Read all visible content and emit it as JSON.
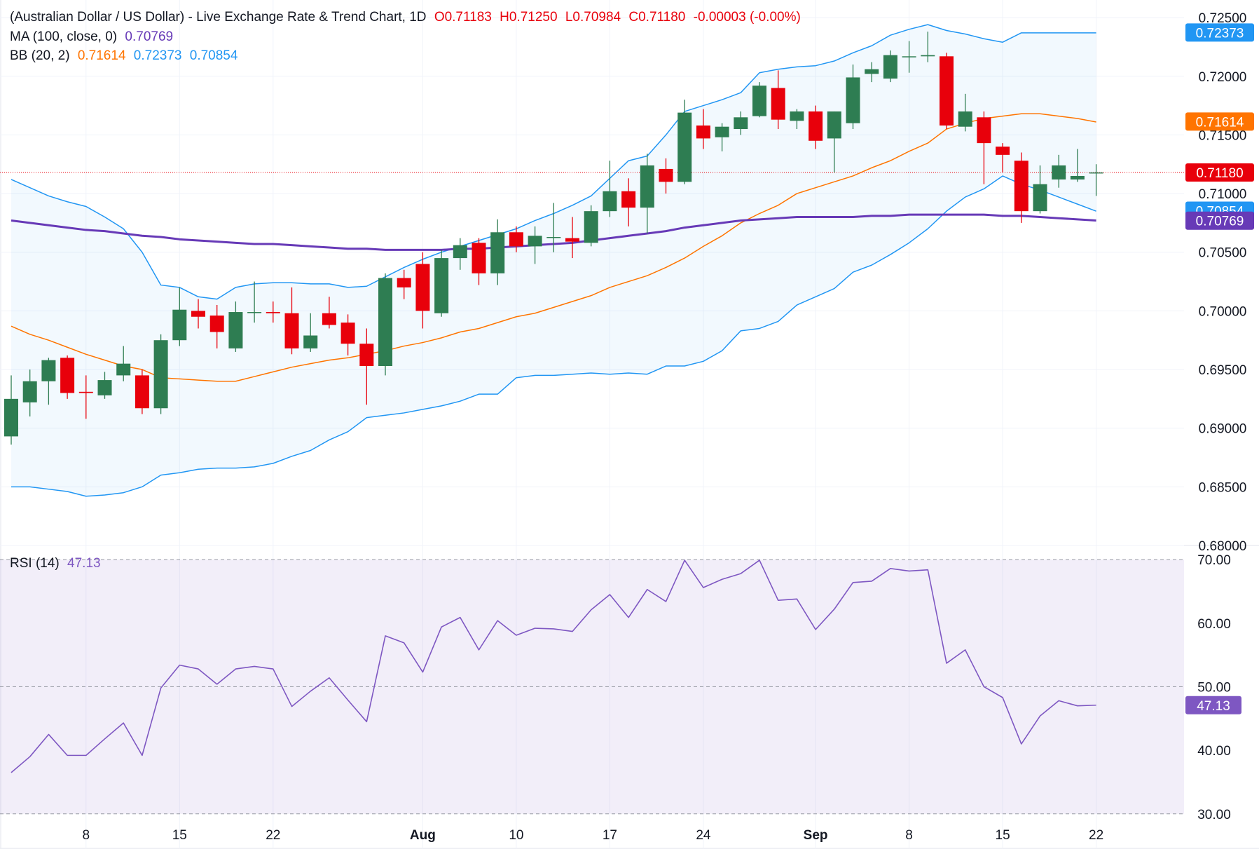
{
  "header": {
    "title": "(Australian Dollar / US Dollar) - Live Exchange Rate & Trend Chart, 1D",
    "open": "O0.71183",
    "high": "H0.71250",
    "low": "L0.70984",
    "close": "C0.71180",
    "change": "-0.00003 (-0.00%)"
  },
  "indicators": {
    "ma_label": "MA (100, close, 0)",
    "ma_value": "0.70769",
    "bb_label": "BB (20, 2)",
    "bb_mid": "0.71614",
    "bb_upper": "0.72373",
    "bb_lower": "0.70854",
    "rsi_label": "RSI (14)",
    "rsi_value": "47.13"
  },
  "colors": {
    "up": "#2e7d52",
    "down": "#e8000b",
    "bb_band": "#2196f3",
    "bb_mid": "#ff7400",
    "ma": "#673ab7",
    "rsi": "#7e57c2",
    "last_price": "#e8000b"
  },
  "chart_data": [
    {
      "type": "candlestick",
      "title": "(Australian Dollar / US Dollar) - Live Exchange Rate & Trend Chart, 1D",
      "ylim": [
        0.68,
        0.7265
      ],
      "y_ticks": [
        "0.72500",
        "0.72000",
        "0.71500",
        "0.71000",
        "0.70500",
        "0.70000",
        "0.69500",
        "0.69000",
        "0.68500",
        "0.68000"
      ],
      "x_ticks": [
        {
          "i": 4,
          "label": "8"
        },
        {
          "i": 9,
          "label": "15"
        },
        {
          "i": 14,
          "label": "22"
        },
        {
          "i": 22,
          "label": "Aug"
        },
        {
          "i": 27,
          "label": "10"
        },
        {
          "i": 32,
          "label": "17"
        },
        {
          "i": 37,
          "label": "24"
        },
        {
          "i": 43,
          "label": "Sep"
        },
        {
          "i": 48,
          "label": "8"
        },
        {
          "i": 53,
          "label": "15"
        },
        {
          "i": 58,
          "label": "22"
        }
      ],
      "ohlc": [
        [
          0.6893,
          0.6945,
          0.6886,
          0.6925
        ],
        [
          0.6922,
          0.695,
          0.691,
          0.694
        ],
        [
          0.694,
          0.696,
          0.692,
          0.6958
        ],
        [
          0.696,
          0.6962,
          0.6925,
          0.693
        ],
        [
          0.6931,
          0.6945,
          0.6908,
          0.693
        ],
        [
          0.6928,
          0.6948,
          0.6925,
          0.6941
        ],
        [
          0.6945,
          0.697,
          0.694,
          0.6955
        ],
        [
          0.6945,
          0.695,
          0.6912,
          0.6917
        ],
        [
          0.6917,
          0.698,
          0.6912,
          0.6975
        ],
        [
          0.6975,
          0.702,
          0.697,
          0.7001
        ],
        [
          0.7,
          0.701,
          0.6985,
          0.6995
        ],
        [
          0.6996,
          0.7005,
          0.6968,
          0.6982
        ],
        [
          0.6968,
          0.7008,
          0.6965,
          0.6999
        ],
        [
          0.6999,
          0.7025,
          0.699,
          0.6999
        ],
        [
          0.6999,
          0.7008,
          0.699,
          0.6998
        ],
        [
          0.6998,
          0.702,
          0.6963,
          0.6968
        ],
        [
          0.6968,
          0.6998,
          0.6965,
          0.6979
        ],
        [
          0.6998,
          0.7012,
          0.6985,
          0.6988
        ],
        [
          0.699,
          0.6997,
          0.6962,
          0.6972
        ],
        [
          0.6972,
          0.6985,
          0.692,
          0.6953
        ],
        [
          0.6953,
          0.7032,
          0.6945,
          0.7028
        ],
        [
          0.7028,
          0.7035,
          0.701,
          0.702
        ],
        [
          0.704,
          0.705,
          0.6985,
          0.7
        ],
        [
          0.6998,
          0.7052,
          0.6995,
          0.7045
        ],
        [
          0.7045,
          0.7062,
          0.7035,
          0.7056
        ],
        [
          0.7058,
          0.7062,
          0.7022,
          0.7032
        ],
        [
          0.7032,
          0.7078,
          0.7022,
          0.7067
        ],
        [
          0.7067,
          0.7072,
          0.705,
          0.7055
        ],
        [
          0.7055,
          0.7072,
          0.704,
          0.7064
        ],
        [
          0.7063,
          0.7092,
          0.705,
          0.7063
        ],
        [
          0.7062,
          0.708,
          0.7045,
          0.7059
        ],
        [
          0.7058,
          0.709,
          0.7055,
          0.7085
        ],
        [
          0.7085,
          0.7128,
          0.708,
          0.7102
        ],
        [
          0.7102,
          0.7113,
          0.7072,
          0.7088
        ],
        [
          0.7088,
          0.7134,
          0.7066,
          0.7124
        ],
        [
          0.7121,
          0.713,
          0.71,
          0.711
        ],
        [
          0.711,
          0.718,
          0.7108,
          0.7169
        ],
        [
          0.7158,
          0.7172,
          0.7138,
          0.7147
        ],
        [
          0.7148,
          0.716,
          0.7136,
          0.7157
        ],
        [
          0.7155,
          0.717,
          0.715,
          0.7165
        ],
        [
          0.7166,
          0.7195,
          0.7165,
          0.7192
        ],
        [
          0.719,
          0.7205,
          0.7155,
          0.7163
        ],
        [
          0.7162,
          0.7172,
          0.7155,
          0.717
        ],
        [
          0.717,
          0.7175,
          0.7138,
          0.7145
        ],
        [
          0.7147,
          0.717,
          0.7118,
          0.717
        ],
        [
          0.716,
          0.721,
          0.7155,
          0.7199
        ],
        [
          0.7202,
          0.7212,
          0.7195,
          0.7206
        ],
        [
          0.7198,
          0.7222,
          0.7195,
          0.7218
        ],
        [
          0.7217,
          0.723,
          0.7203,
          0.7217
        ],
        [
          0.7217,
          0.7238,
          0.7212,
          0.7218
        ],
        [
          0.7217,
          0.722,
          0.7155,
          0.7158
        ],
        [
          0.7157,
          0.7185,
          0.7153,
          0.717
        ],
        [
          0.7165,
          0.717,
          0.7108,
          0.7143
        ],
        [
          0.714,
          0.7143,
          0.7118,
          0.7133
        ],
        [
          0.7128,
          0.7135,
          0.7075,
          0.7085
        ],
        [
          0.7085,
          0.7124,
          0.7083,
          0.7108
        ],
        [
          0.7112,
          0.7133,
          0.7105,
          0.7124
        ],
        [
          0.7112,
          0.7138,
          0.711,
          0.7115
        ],
        [
          0.7118,
          0.7125,
          0.7098,
          0.7118
        ]
      ],
      "bb_upper": [
        0.7112,
        0.7105,
        0.7098,
        0.7093,
        0.7089,
        0.708,
        0.707,
        0.705,
        0.7022,
        0.702,
        0.7012,
        0.701,
        0.702,
        0.7023,
        0.7024,
        0.7024,
        0.7023,
        0.7023,
        0.702,
        0.7021,
        0.7029,
        0.7037,
        0.7044,
        0.705,
        0.7055,
        0.706,
        0.7065,
        0.707,
        0.7077,
        0.7083,
        0.709,
        0.7098,
        0.7113,
        0.7128,
        0.7132,
        0.715,
        0.717,
        0.7175,
        0.718,
        0.7186,
        0.7203,
        0.7206,
        0.7208,
        0.7209,
        0.7213,
        0.722,
        0.7226,
        0.7235,
        0.724,
        0.7244,
        0.7239,
        0.7236,
        0.7232,
        0.7229,
        0.7237,
        0.7237,
        0.7237,
        0.7237,
        0.7237
      ],
      "bb_mid": [
        0.6987,
        0.698,
        0.6975,
        0.6969,
        0.6963,
        0.6958,
        0.6953,
        0.695,
        0.6943,
        0.6942,
        0.6941,
        0.694,
        0.694,
        0.6944,
        0.6948,
        0.6952,
        0.6955,
        0.6958,
        0.696,
        0.6963,
        0.6966,
        0.697,
        0.6973,
        0.6977,
        0.6982,
        0.6985,
        0.699,
        0.6995,
        0.6998,
        0.7003,
        0.7008,
        0.7013,
        0.702,
        0.7025,
        0.703,
        0.7037,
        0.7045,
        0.7055,
        0.7064,
        0.7075,
        0.7083,
        0.709,
        0.71,
        0.7105,
        0.711,
        0.7115,
        0.7122,
        0.7128,
        0.7136,
        0.7143,
        0.7155,
        0.716,
        0.7164,
        0.7166,
        0.7168,
        0.7168,
        0.7166,
        0.7164,
        0.7161
      ],
      "bb_lower": [
        0.685,
        0.685,
        0.6848,
        0.6846,
        0.6842,
        0.6843,
        0.6845,
        0.685,
        0.686,
        0.6862,
        0.6865,
        0.6866,
        0.6866,
        0.6867,
        0.687,
        0.6876,
        0.6881,
        0.689,
        0.6897,
        0.6909,
        0.6911,
        0.6913,
        0.6916,
        0.6919,
        0.6923,
        0.6929,
        0.6929,
        0.6943,
        0.6945,
        0.6945,
        0.6946,
        0.6947,
        0.6946,
        0.6947,
        0.6946,
        0.6953,
        0.6953,
        0.6957,
        0.6966,
        0.6983,
        0.6985,
        0.6991,
        0.7005,
        0.7012,
        0.7019,
        0.7033,
        0.7039,
        0.7048,
        0.7058,
        0.707,
        0.7085,
        0.7097,
        0.7104,
        0.7115,
        0.7108,
        0.7103,
        0.7097,
        0.7091,
        0.7085
      ],
      "ma": [
        0.7077,
        0.7075,
        0.7073,
        0.7071,
        0.7069,
        0.7068,
        0.7066,
        0.7064,
        0.7063,
        0.7061,
        0.706,
        0.7059,
        0.7058,
        0.7057,
        0.7057,
        0.7056,
        0.7055,
        0.7054,
        0.7053,
        0.7053,
        0.7052,
        0.7052,
        0.7052,
        0.7052,
        0.7053,
        0.7053,
        0.7054,
        0.7055,
        0.7056,
        0.7057,
        0.7058,
        0.706,
        0.7062,
        0.7064,
        0.7066,
        0.7068,
        0.7071,
        0.7073,
        0.7075,
        0.7077,
        0.7078,
        0.7079,
        0.708,
        0.708,
        0.708,
        0.708,
        0.7081,
        0.7081,
        0.7082,
        0.7082,
        0.7082,
        0.7082,
        0.7082,
        0.7081,
        0.7081,
        0.708,
        0.7079,
        0.7078,
        0.7077
      ],
      "last_price": 0.7118,
      "price_labels": {
        "upper": "0.72373",
        "mid": "0.71614",
        "last": "0.71180",
        "lower": "0.70854",
        "ma": "0.70769"
      }
    },
    {
      "type": "line",
      "title": "RSI (14)",
      "ylim": [
        27,
        72
      ],
      "y_ticks": [
        "70.00",
        "60.00",
        "50.00",
        "40.00",
        "30.00"
      ],
      "levels": [
        70,
        50,
        30
      ],
      "values": [
        36.5,
        39.0,
        42.5,
        39.2,
        39.2,
        41.8,
        44.3,
        39.2,
        49.8,
        53.4,
        52.8,
        50.4,
        52.8,
        53.2,
        52.8,
        46.9,
        49.3,
        51.4,
        47.9,
        44.5,
        58.0,
        56.9,
        52.3,
        59.4,
        60.9,
        55.8,
        60.4,
        58.1,
        59.2,
        59.1,
        58.7,
        62.1,
        64.5,
        60.9,
        65.3,
        63.4,
        69.9,
        65.6,
        66.9,
        67.8,
        69.9,
        63.6,
        63.8,
        59.0,
        62.2,
        66.4,
        66.6,
        68.6,
        68.2,
        68.4,
        53.7,
        55.8,
        50.0,
        48.3,
        41.0,
        45.4,
        47.8,
        47.0,
        47.1
      ],
      "value_label": "47.13"
    }
  ]
}
